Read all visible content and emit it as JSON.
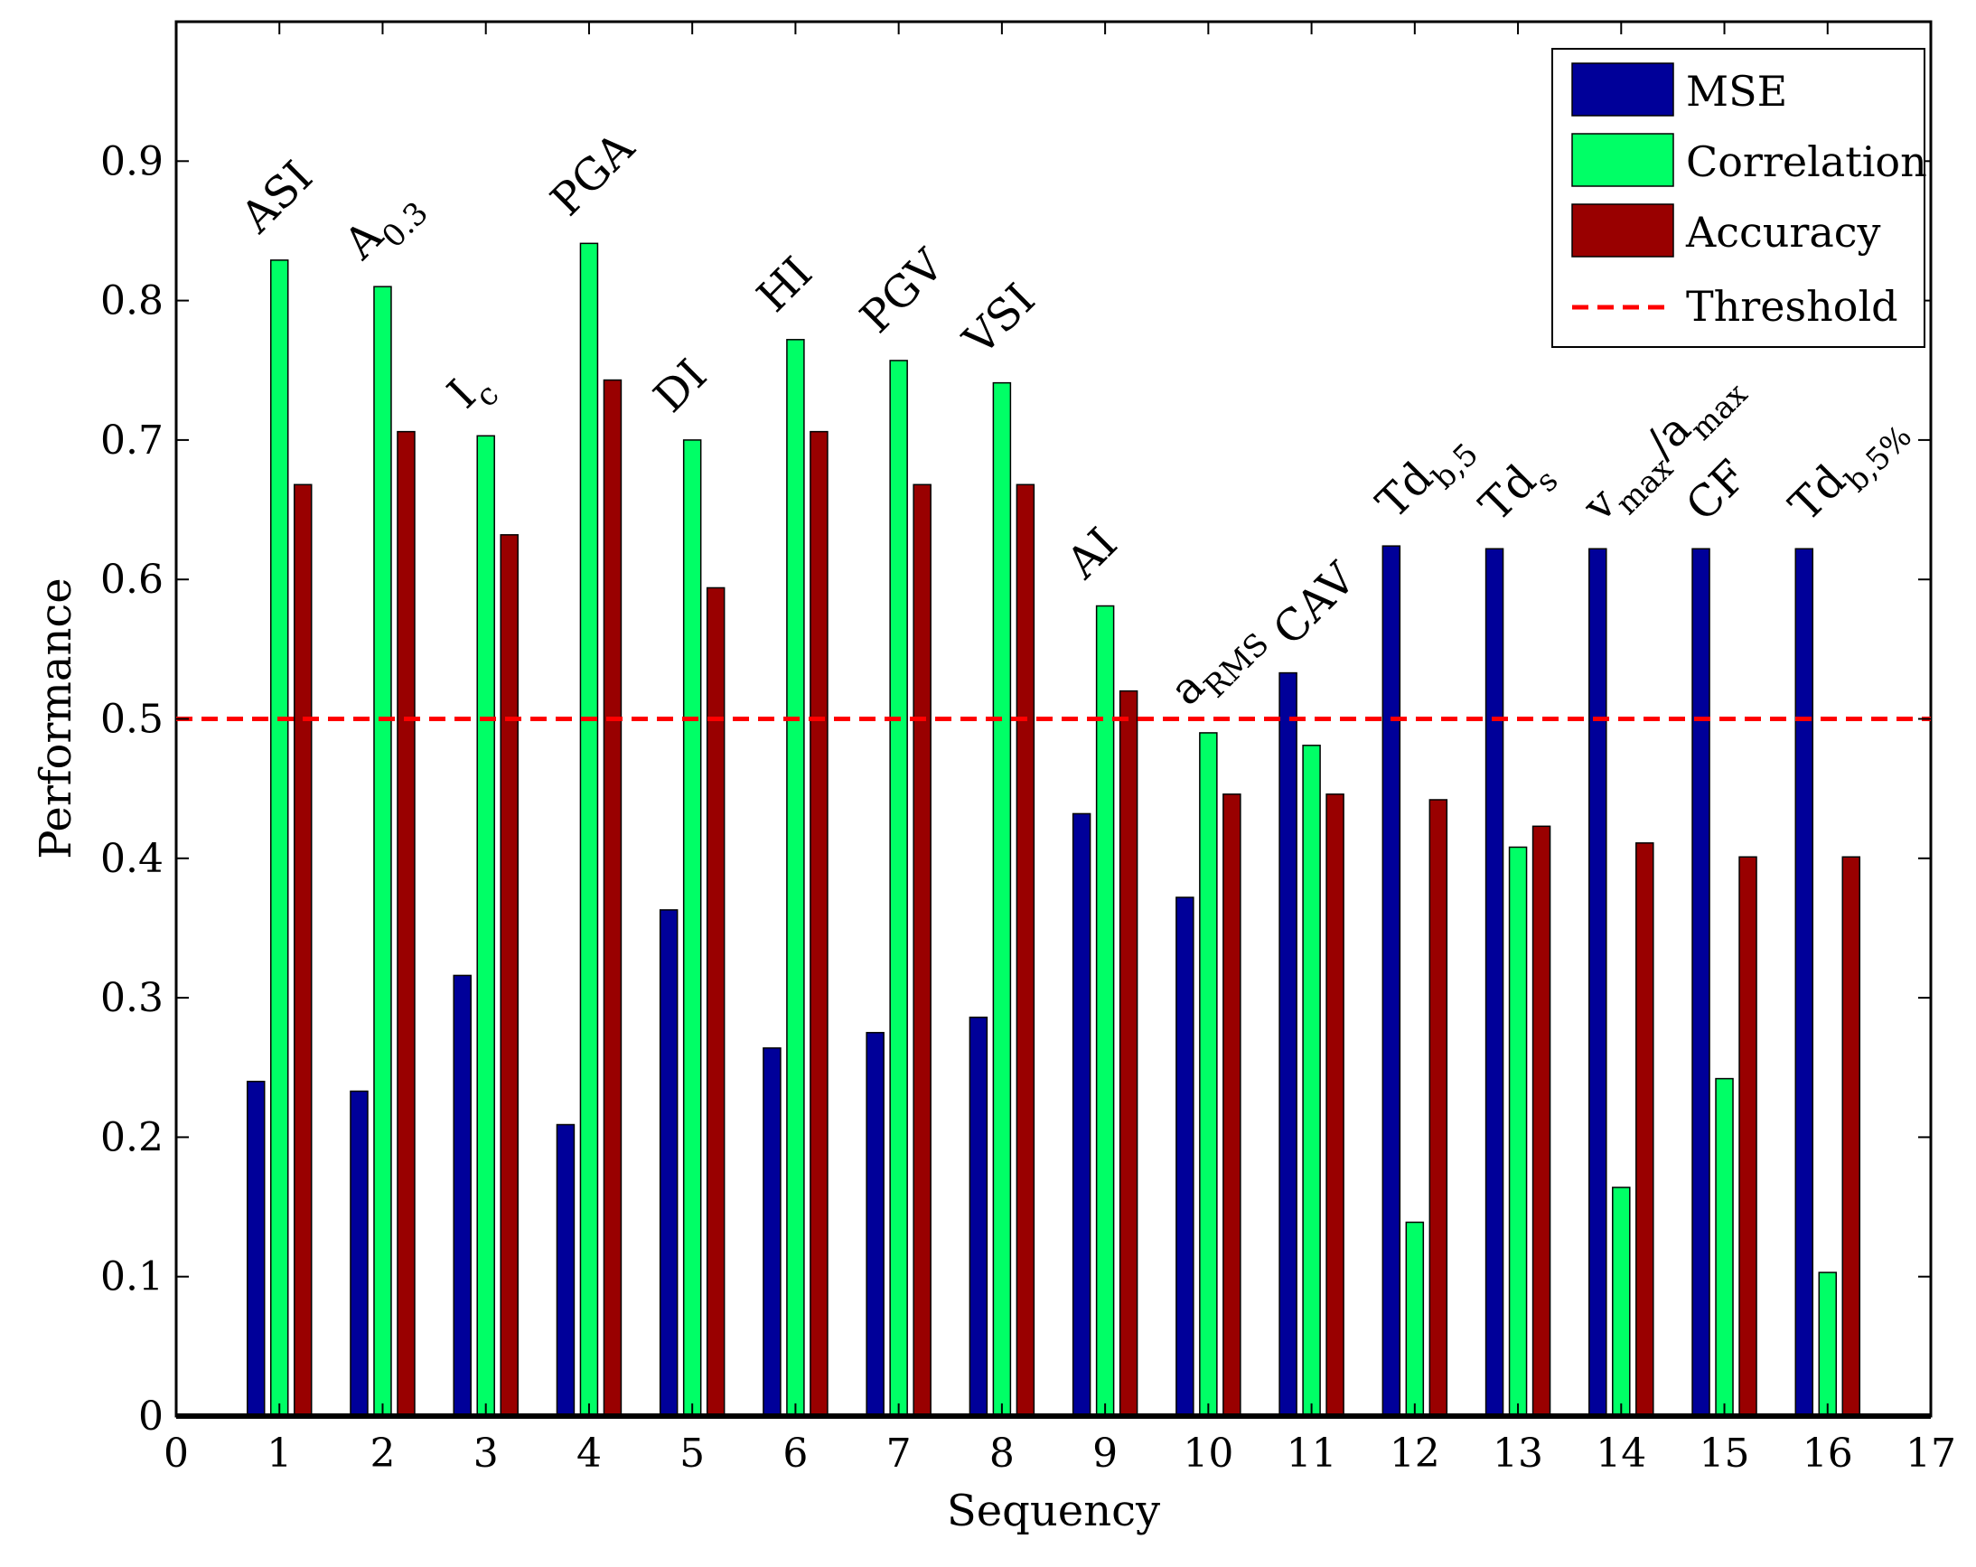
{
  "chart_data": {
    "type": "bar",
    "title": "",
    "xlabel": "Sequency",
    "ylabel": "Performance",
    "xlim": [
      0,
      17
    ],
    "ylim": [
      0,
      1
    ],
    "x_ticks": [
      "0",
      "1",
      "2",
      "3",
      "4",
      "5",
      "6",
      "7",
      "8",
      "9",
      "10",
      "11",
      "12",
      "13",
      "14",
      "15",
      "16",
      "17"
    ],
    "y_ticks": [
      "0",
      "0.1",
      "0.2",
      "0.3",
      "0.4",
      "0.5",
      "0.6",
      "0.7",
      "0.8",
      "0.9"
    ],
    "grid": false,
    "legend_position": "top-right",
    "categories": [
      1,
      2,
      3,
      4,
      5,
      6,
      7,
      8,
      9,
      10,
      11,
      12,
      13,
      14,
      15,
      16
    ],
    "series": [
      {
        "name": "MSE",
        "color": "#000099",
        "values": [
          0.24,
          0.233,
          0.316,
          0.209,
          0.363,
          0.264,
          0.275,
          0.286,
          0.432,
          0.372,
          0.533,
          0.624,
          0.622,
          0.622,
          0.622,
          0.622
        ]
      },
      {
        "name": "Correlation",
        "color": "#00ff66",
        "values": [
          0.829,
          0.81,
          0.703,
          0.841,
          0.7,
          0.772,
          0.757,
          0.741,
          0.581,
          0.49,
          0.481,
          0.139,
          0.408,
          0.164,
          0.242,
          0.103
        ]
      },
      {
        "name": "Accuracy",
        "color": "#990000",
        "values": [
          0.668,
          0.706,
          0.632,
          0.743,
          0.594,
          0.706,
          0.668,
          0.668,
          0.52,
          0.446,
          0.446,
          0.442,
          0.423,
          0.411,
          0.401,
          0.401
        ]
      }
    ],
    "threshold": {
      "name": "Threshold",
      "value": 0.5,
      "color": "#ff0000",
      "style": "dashed"
    },
    "annotations": [
      {
        "x": 1,
        "text": "ASI",
        "sub": ""
      },
      {
        "x": 2,
        "text": "A",
        "sub": "0.3"
      },
      {
        "x": 3,
        "text": "I",
        "sub": "c"
      },
      {
        "x": 4,
        "text": "PGA",
        "sub": ""
      },
      {
        "x": 5,
        "text": "DI",
        "sub": ""
      },
      {
        "x": 6,
        "text": "HI",
        "sub": ""
      },
      {
        "x": 7,
        "text": "PGV",
        "sub": ""
      },
      {
        "x": 8,
        "text": "VSI",
        "sub": ""
      },
      {
        "x": 9,
        "text": "AI",
        "sub": ""
      },
      {
        "x": 10,
        "text": "a",
        "sub": "RMS"
      },
      {
        "x": 11,
        "text": "CAV",
        "sub": ""
      },
      {
        "x": 12,
        "text": "Td",
        "sub": "b,5"
      },
      {
        "x": 13,
        "text": "Td",
        "sub": "s"
      },
      {
        "x": 14,
        "text": "v",
        "sub": "max",
        "text2": "/a",
        "sub2": "max"
      },
      {
        "x": 15,
        "text": "CF",
        "sub": ""
      },
      {
        "x": 16,
        "text": "Td",
        "sub": "b,5%"
      }
    ]
  }
}
